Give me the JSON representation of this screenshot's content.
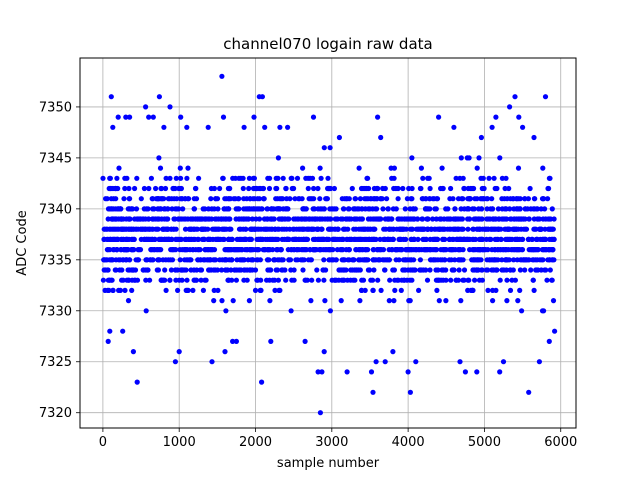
{
  "chart_data": {
    "type": "scatter",
    "title": "channel070 logain raw data",
    "xlabel": "sample number",
    "ylabel": "ADC Code",
    "xlim": [
      -300,
      6200
    ],
    "ylim": [
      7318.5,
      7354.8
    ],
    "xticks": [
      0,
      1000,
      2000,
      3000,
      4000,
      5000,
      6000
    ],
    "yticks": [
      7320,
      7325,
      7330,
      7335,
      7340,
      7345,
      7350
    ],
    "grid": true,
    "marker_color": "#0000ff",
    "series": [
      {
        "x_range": [
          0,
          5920
        ],
        "y_range": [
          7320,
          7353
        ],
        "dense_band": [
          7330,
          7345
        ],
        "outliers": [
          {
            "x": 70,
            "y": 7327
          },
          {
            "x": 90,
            "y": 7328
          },
          {
            "x": 110,
            "y": 7351
          },
          {
            "x": 130,
            "y": 7348
          },
          {
            "x": 200,
            "y": 7349
          },
          {
            "x": 260,
            "y": 7328
          },
          {
            "x": 300,
            "y": 7349
          },
          {
            "x": 350,
            "y": 7349
          },
          {
            "x": 400,
            "y": 7326
          },
          {
            "x": 450,
            "y": 7323
          },
          {
            "x": 560,
            "y": 7350
          },
          {
            "x": 600,
            "y": 7349
          },
          {
            "x": 660,
            "y": 7349
          },
          {
            "x": 740,
            "y": 7351
          },
          {
            "x": 800,
            "y": 7348
          },
          {
            "x": 880,
            "y": 7350
          },
          {
            "x": 950,
            "y": 7325
          },
          {
            "x": 1000,
            "y": 7326
          },
          {
            "x": 1020,
            "y": 7349
          },
          {
            "x": 1100,
            "y": 7348
          },
          {
            "x": 1380,
            "y": 7348
          },
          {
            "x": 1430,
            "y": 7325
          },
          {
            "x": 1560,
            "y": 7353
          },
          {
            "x": 1580,
            "y": 7349
          },
          {
            "x": 1600,
            "y": 7326
          },
          {
            "x": 1700,
            "y": 7327
          },
          {
            "x": 1750,
            "y": 7327
          },
          {
            "x": 1850,
            "y": 7348
          },
          {
            "x": 1980,
            "y": 7349
          },
          {
            "x": 2050,
            "y": 7351
          },
          {
            "x": 2080,
            "y": 7323
          },
          {
            "x": 2090,
            "y": 7351
          },
          {
            "x": 2120,
            "y": 7348
          },
          {
            "x": 2200,
            "y": 7327
          },
          {
            "x": 2320,
            "y": 7348
          },
          {
            "x": 2420,
            "y": 7348
          },
          {
            "x": 2650,
            "y": 7327
          },
          {
            "x": 2760,
            "y": 7349
          },
          {
            "x": 2820,
            "y": 7324
          },
          {
            "x": 2850,
            "y": 7320
          },
          {
            "x": 2870,
            "y": 7324
          },
          {
            "x": 2900,
            "y": 7326
          },
          {
            "x": 3100,
            "y": 7347
          },
          {
            "x": 3200,
            "y": 7324
          },
          {
            "x": 3520,
            "y": 7324
          },
          {
            "x": 3540,
            "y": 7322
          },
          {
            "x": 3580,
            "y": 7325
          },
          {
            "x": 3600,
            "y": 7349
          },
          {
            "x": 3640,
            "y": 7347
          },
          {
            "x": 3700,
            "y": 7325
          },
          {
            "x": 3800,
            "y": 7326
          },
          {
            "x": 4000,
            "y": 7324
          },
          {
            "x": 4030,
            "y": 7322
          },
          {
            "x": 4100,
            "y": 7325
          },
          {
            "x": 4400,
            "y": 7349
          },
          {
            "x": 4600,
            "y": 7348
          },
          {
            "x": 4680,
            "y": 7325
          },
          {
            "x": 4750,
            "y": 7324
          },
          {
            "x": 4900,
            "y": 7324
          },
          {
            "x": 4960,
            "y": 7347
          },
          {
            "x": 5100,
            "y": 7348
          },
          {
            "x": 5150,
            "y": 7349
          },
          {
            "x": 5200,
            "y": 7324
          },
          {
            "x": 5250,
            "y": 7325
          },
          {
            "x": 5330,
            "y": 7350
          },
          {
            "x": 5400,
            "y": 7351
          },
          {
            "x": 5450,
            "y": 7349
          },
          {
            "x": 5500,
            "y": 7348
          },
          {
            "x": 5580,
            "y": 7322
          },
          {
            "x": 5650,
            "y": 7347
          },
          {
            "x": 5720,
            "y": 7325
          },
          {
            "x": 5800,
            "y": 7351
          },
          {
            "x": 5850,
            "y": 7327
          },
          {
            "x": 5920,
            "y": 7328
          }
        ]
      }
    ]
  }
}
